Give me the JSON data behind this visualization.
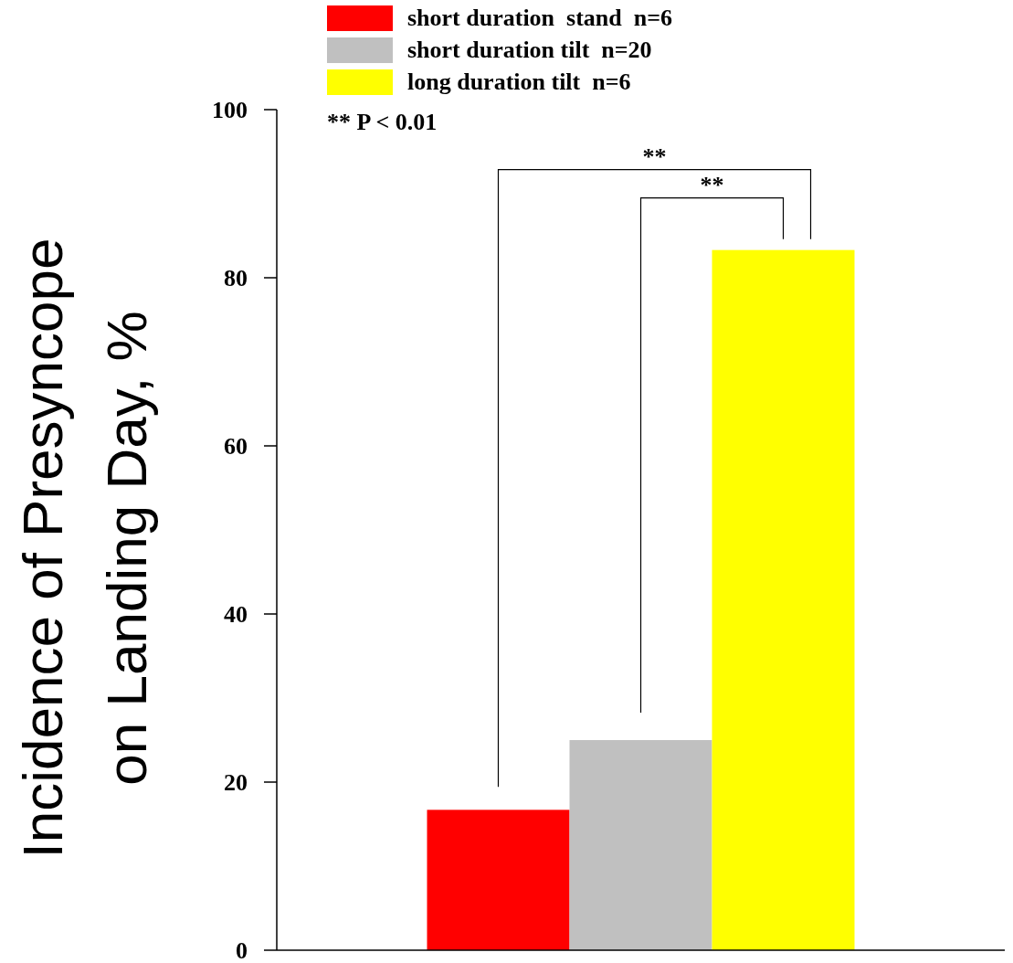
{
  "chart_data": {
    "type": "bar",
    "ylabel": "Incidence of Presyncope\non Landing Day, %",
    "categories": [
      null
    ],
    "series": [
      {
        "name": "short duration  stand  n=6",
        "color": "#ff0000",
        "values": [
          16.7
        ]
      },
      {
        "name": "short duration tilt  n=20",
        "color": "#c0c0c0",
        "values": [
          25
        ]
      },
      {
        "name": "long duration tilt  n=6",
        "color": "#ffff00",
        "values": [
          83.3
        ]
      }
    ],
    "ylim": [
      0,
      100
    ],
    "yticks": [
      0,
      20,
      40,
      60,
      80,
      100
    ],
    "grid": false,
    "legend": "top left",
    "annotations": [
      "** P < 0.01",
      "**",
      "**"
    ]
  }
}
